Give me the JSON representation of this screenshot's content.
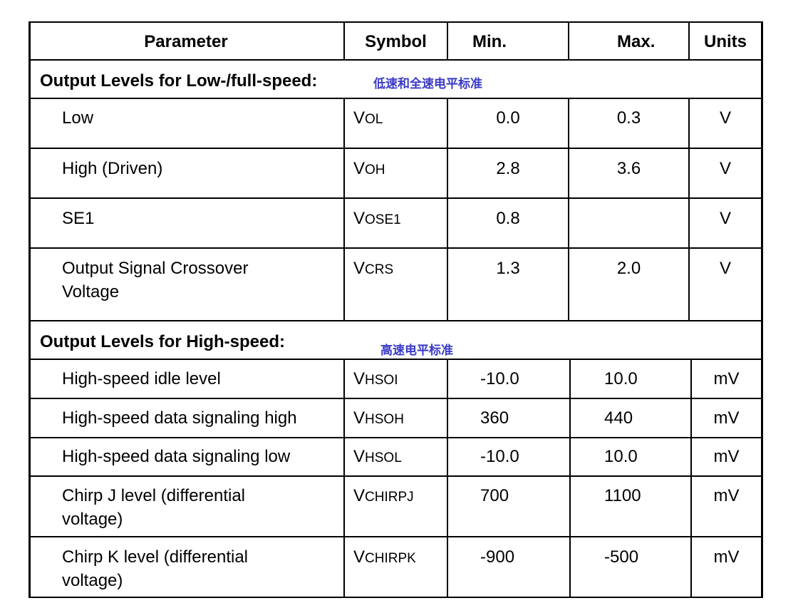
{
  "headers": {
    "parameter": "Parameter",
    "symbol": "Symbol",
    "min": "Min.",
    "max": "Max.",
    "units": "Units"
  },
  "sections": [
    {
      "title": "Output Levels for Low-/full-speed:",
      "note": "低速和全速电平标准",
      "rows": [
        {
          "param": [
            "Low"
          ],
          "sym_main": "V",
          "sym_sub": "OL",
          "min": "0.0",
          "max": "0.3",
          "units": "V"
        },
        {
          "param": [
            "High (Driven)"
          ],
          "sym_main": "V",
          "sym_sub": "OH",
          "min": "2.8",
          "max": "3.6",
          "units": "V"
        },
        {
          "param": [
            "SE1"
          ],
          "sym_main": "V",
          "sym_sub": "OSE1",
          "min": "0.8",
          "max": "",
          "units": "V"
        },
        {
          "param": [
            "Output Signal Crossover",
            "Voltage"
          ],
          "sym_main": "V",
          "sym_sub": "CRS",
          "min": "1.3",
          "max": "2.0",
          "units": "V"
        }
      ]
    },
    {
      "title": "Output Levels for High-speed:",
      "note": "高速电平标准",
      "rows": [
        {
          "param": [
            "High-speed idle level"
          ],
          "sym_main": "V",
          "sym_sub": "HSOI",
          "min": "-10.0",
          "max": "10.0",
          "units": "mV"
        },
        {
          "param": [
            "High-speed data signaling high"
          ],
          "sym_main": "V",
          "sym_sub": "HSOH",
          "min": "360",
          "max": "440",
          "units": "mV"
        },
        {
          "param": [
            "High-speed data signaling low"
          ],
          "sym_main": "V",
          "sym_sub": "HSOL",
          "min": "-10.0",
          "max": "10.0",
          "units": "mV"
        },
        {
          "param": [
            "Chirp J level (differential",
            "voltage)"
          ],
          "sym_main": "V",
          "sym_sub": "CHIRPJ",
          "min": "700",
          "max": "1100",
          "units": "mV"
        },
        {
          "param": [
            "Chirp K level (differential",
            "voltage)"
          ],
          "sym_main": "V",
          "sym_sub": "CHIRPK",
          "min": "-900",
          "max": "-500",
          "units": "mV"
        }
      ]
    }
  ]
}
